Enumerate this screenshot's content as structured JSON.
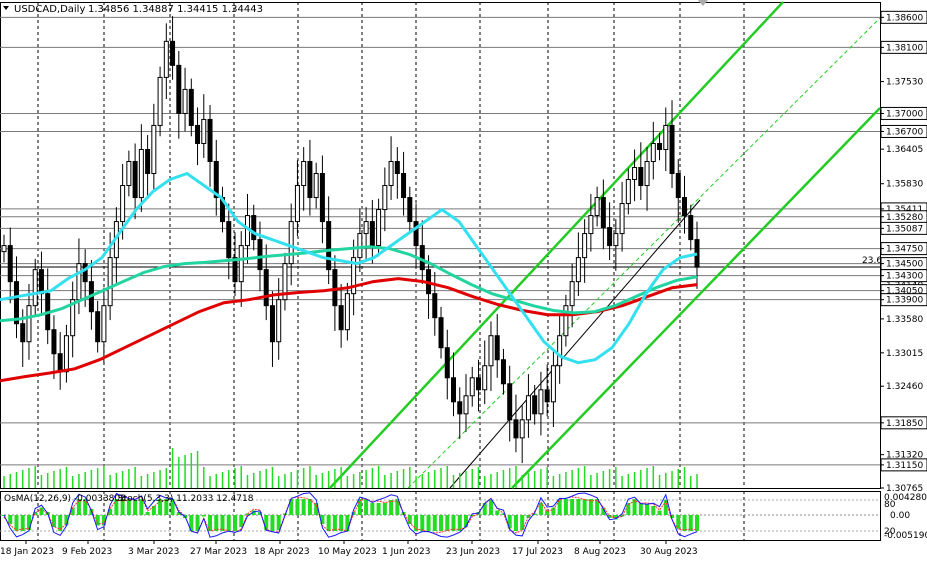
{
  "header": {
    "symbol": "USDCAD,Daily",
    "ohlc": "1.34856 1.34887 1.34415 1.34443"
  },
  "indicator": {
    "osma_label": "OsMA(12,26,9) -0.0033808",
    "stoch_label": "Stoch(5,3,3) 11.2033 12.4718",
    "scale_top": "0.0042803",
    "scale_80": "80",
    "scale_mid": "0.00",
    "scale_20": "20",
    "scale_bottom": "-0.0051905"
  },
  "fib_label": "23.6",
  "colors": {
    "candle": "#000000",
    "ma_fast": "#33e0f0",
    "ma_mid": "#22d4a0",
    "ma_slow": "#e00000",
    "channel": "#22cc22",
    "osma": "#22dd22",
    "stoch_main": "#1a1aff",
    "stoch_signal": "#ff3030",
    "grid": "#000000",
    "level_line": "#7a7a7a"
  },
  "chart_data": {
    "type": "candlestick",
    "ylim": [
      1.30765,
      1.38855
    ],
    "x_labels": [
      "18 Jan 2023",
      "9 Feb 2023",
      "3 Mar 2023",
      "27 Mar 2023",
      "18 Apr 2023",
      "10 May 2023",
      "1 Jun 2023",
      "23 Jun 2023",
      "17 Jul 2023",
      "8 Aug 2023",
      "30 Aug 2023"
    ],
    "y_ticks": [
      "1.38600",
      "1.38100",
      "1.37530",
      "1.37000",
      "1.36700",
      "1.36405",
      "1.35830",
      "1.35411",
      "1.35280",
      "1.35087",
      "1.34750",
      "1.34500",
      "1.34300",
      "1.34140",
      "1.34050",
      "1.33900",
      "1.33580",
      "1.33015",
      "1.32460",
      "1.31850",
      "1.31320",
      "1.31150",
      "1.30765"
    ],
    "highlighted_levels": [
      "1.38600",
      "1.38100",
      "1.37000",
      "1.36700",
      "1.35411",
      "1.35280",
      "1.35087",
      "1.34750",
      "1.34500",
      "1.34300",
      "1.34050",
      "1.33900",
      "1.31850",
      "1.31150"
    ],
    "last_close": 1.34443,
    "closes": [
      1.348,
      1.342,
      1.335,
      1.332,
      1.338,
      1.344,
      1.34,
      1.334,
      1.33,
      1.327,
      1.333,
      1.339,
      1.345,
      1.342,
      1.337,
      1.332,
      1.338,
      1.346,
      1.352,
      1.358,
      1.362,
      1.356,
      1.364,
      1.36,
      1.368,
      1.376,
      1.382,
      1.378,
      1.37,
      1.374,
      1.368,
      1.365,
      1.369,
      1.362,
      1.356,
      1.352,
      1.346,
      1.342,
      1.348,
      1.353,
      1.349,
      1.344,
      1.338,
      1.332,
      1.339,
      1.345,
      1.352,
      1.358,
      1.362,
      1.356,
      1.36,
      1.352,
      1.344,
      1.338,
      1.334,
      1.34,
      1.346,
      1.35,
      1.352,
      1.348,
      1.354,
      1.358,
      1.362,
      1.36,
      1.356,
      1.352,
      1.348,
      1.344,
      1.34,
      1.336,
      1.331,
      1.326,
      1.322,
      1.32,
      1.323,
      1.326,
      1.324,
      1.328,
      1.333,
      1.329,
      1.325,
      1.319,
      1.316,
      1.319,
      1.323,
      1.32,
      1.324,
      1.322,
      1.328,
      1.333,
      1.338,
      1.342,
      1.346,
      1.35,
      1.353,
      1.356,
      1.351,
      1.348,
      1.35,
      1.355,
      1.359,
      1.361,
      1.358,
      1.362,
      1.365,
      1.364,
      1.368,
      1.36,
      1.356,
      1.353,
      1.349,
      1.3444
    ],
    "series": [
      {
        "values": [
          1.339,
          1.3395,
          1.34,
          1.3405,
          1.3425,
          1.344,
          1.346,
          1.35,
          1.354,
          1.357,
          1.359,
          1.36,
          1.358,
          1.356,
          1.352,
          1.35,
          1.349,
          1.348,
          1.347,
          1.346,
          1.3455,
          1.345,
          1.346,
          1.348,
          1.35,
          1.352,
          1.354,
          1.352,
          1.348,
          1.344,
          1.34,
          1.336,
          1.332,
          1.3295,
          1.3285,
          1.329,
          1.331,
          1.335,
          1.34,
          1.344,
          1.346,
          1.3466
        ]
      },
      {
        "values": [
          1.3355,
          1.3358,
          1.3365,
          1.3375,
          1.339,
          1.3405,
          1.342,
          1.3435,
          1.3445,
          1.345,
          1.3452,
          1.3455,
          1.3458,
          1.3462,
          1.3465,
          1.3468,
          1.3472,
          1.3475,
          1.3478,
          1.3475,
          1.3465,
          1.345,
          1.3432,
          1.3415,
          1.34,
          1.339,
          1.338,
          1.3372,
          1.3368,
          1.337,
          1.338,
          1.3395,
          1.341,
          1.3422,
          1.3428
        ]
      },
      {
        "values": [
          1.3255,
          1.3262,
          1.3268,
          1.3275,
          1.329,
          1.331,
          1.333,
          1.335,
          1.337,
          1.3385,
          1.339,
          1.3398,
          1.3402,
          1.3405,
          1.341,
          1.342,
          1.3425,
          1.342,
          1.341,
          1.3395,
          1.3382,
          1.3372,
          1.3365,
          1.3365,
          1.337,
          1.338,
          1.3395,
          1.341,
          1.3415
        ]
      }
    ]
  }
}
